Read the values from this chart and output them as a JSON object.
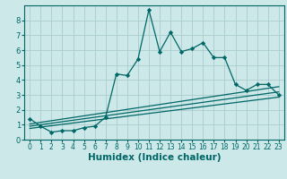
{
  "title": "",
  "xlabel": "Humidex (Indice chaleur)",
  "ylabel": "",
  "bg_color": "#cce8e8",
  "line_color": "#006666",
  "xlim": [
    -0.5,
    23.5
  ],
  "ylim": [
    0,
    9
  ],
  "xticks": [
    0,
    1,
    2,
    3,
    4,
    5,
    6,
    7,
    8,
    9,
    10,
    11,
    12,
    13,
    14,
    15,
    16,
    17,
    18,
    19,
    20,
    21,
    22,
    23
  ],
  "yticks": [
    0,
    1,
    2,
    3,
    4,
    5,
    6,
    7,
    8
  ],
  "main_x": [
    0,
    1,
    2,
    3,
    4,
    5,
    6,
    7,
    8,
    9,
    10,
    11,
    12,
    13,
    14,
    15,
    16,
    17,
    18,
    19,
    20,
    21,
    22,
    23
  ],
  "main_y": [
    1.4,
    0.9,
    0.5,
    0.6,
    0.6,
    0.8,
    0.9,
    1.5,
    4.4,
    4.3,
    5.4,
    8.7,
    5.9,
    7.2,
    5.9,
    6.1,
    6.5,
    5.5,
    5.5,
    3.7,
    3.3,
    3.7,
    3.7,
    3.0
  ],
  "line2_x": [
    0,
    23
  ],
  "line2_y": [
    1.05,
    3.55
  ],
  "line3_x": [
    0,
    23
  ],
  "line3_y": [
    0.9,
    3.2
  ],
  "line4_x": [
    0,
    23
  ],
  "line4_y": [
    0.75,
    2.85
  ],
  "grid_color": "#aacccc",
  "tick_fontsize": 5.5,
  "label_fontsize": 7.5
}
